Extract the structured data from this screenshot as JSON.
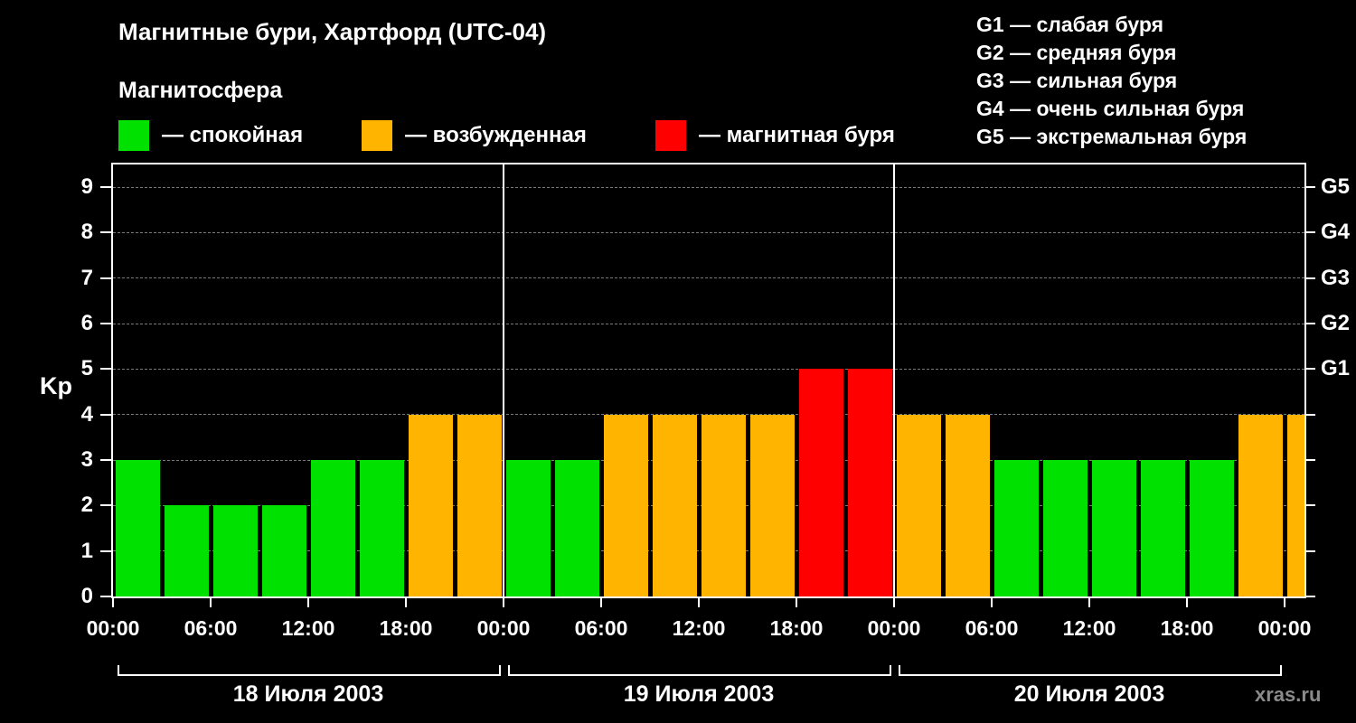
{
  "header": {
    "title": "Магнитные бури, Хартфорд (UTC-04)",
    "subtitle": "Магнитосфера"
  },
  "legend": {
    "items": [
      {
        "key": "quiet",
        "label": "— спокойная"
      },
      {
        "key": "excited",
        "label": "— возбужденная"
      },
      {
        "key": "storm",
        "label": "— магнитная буря"
      }
    ]
  },
  "g_scale_legend": [
    "G1 — слабая буря",
    "G2 — средняя буря",
    "G3 — сильная буря",
    "G4 — очень сильная буря",
    "G5 — экстремальная буря"
  ],
  "watermark": "xras.ru",
  "chart_data": {
    "type": "bar",
    "title": "Магнитные бури, Хартфорд (UTC-04)",
    "ylabel": "Kp",
    "ylim": [
      0,
      9.5
    ],
    "y_ticks": [
      0,
      1,
      2,
      3,
      4,
      5,
      6,
      7,
      8,
      9
    ],
    "right_axis_labels": [
      {
        "label": "G1",
        "value": 5
      },
      {
        "label": "G2",
        "value": 6
      },
      {
        "label": "G3",
        "value": 7
      },
      {
        "label": "G4",
        "value": 8
      },
      {
        "label": "G5",
        "value": 9
      }
    ],
    "x_tick_labels": [
      "00:00",
      "06:00",
      "12:00",
      "18:00",
      "00:00",
      "06:00",
      "12:00",
      "18:00",
      "00:00",
      "06:00",
      "12:00",
      "18:00",
      "00:00"
    ],
    "days": [
      {
        "date": "18 Июля 2003",
        "values": [
          3,
          2,
          2,
          2,
          3,
          3,
          4,
          4
        ]
      },
      {
        "date": "19 Июля 2003",
        "values": [
          3,
          3,
          4,
          4,
          4,
          4,
          5,
          5
        ]
      },
      {
        "date": "20 Июля 2003",
        "values": [
          4,
          4,
          3,
          3,
          3,
          3,
          3,
          4
        ]
      }
    ],
    "partial_next_value": 4,
    "hours_per_bar": 3,
    "colors": {
      "quiet": "#00e100",
      "excited": "#ffb400",
      "storm": "#ff0000"
    },
    "thresholds": {
      "quiet_max": 3,
      "storm_min": 5
    },
    "grid": true,
    "legend_position": "top"
  }
}
